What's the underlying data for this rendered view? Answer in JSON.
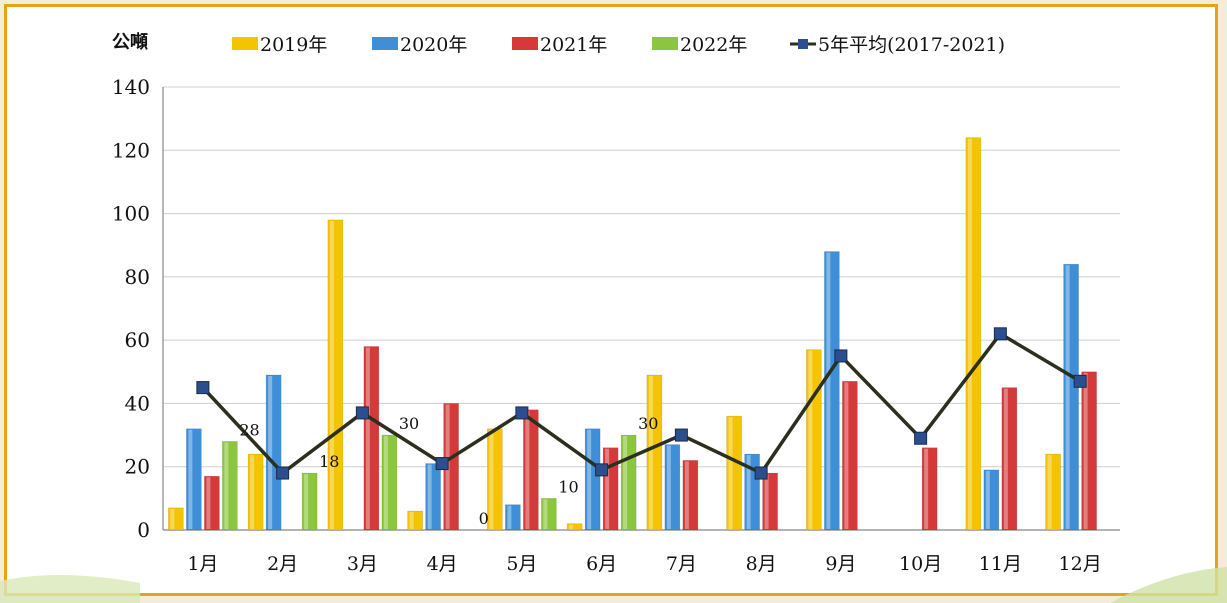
{
  "chart_data": {
    "type": "bar",
    "unit_label": "公噸",
    "categories": [
      "1月",
      "2月",
      "3月",
      "4月",
      "5月",
      "6月",
      "7月",
      "8月",
      "9月",
      "10月",
      "11月",
      "12月"
    ],
    "ylim": [
      0,
      140
    ],
    "yticks": [
      0,
      20,
      40,
      60,
      80,
      100,
      120,
      140
    ],
    "grid": true,
    "legend_placement": "top",
    "series": [
      {
        "name": "2019年",
        "color": "#f5c400",
        "values": [
          7,
          24,
          98,
          6,
          32,
          2,
          49,
          36,
          57,
          0,
          124,
          24
        ]
      },
      {
        "name": "2020年",
        "color": "#3f8fd8",
        "values": [
          32,
          49,
          0,
          21,
          8,
          32,
          27,
          24,
          88,
          0,
          19,
          84
        ]
      },
      {
        "name": "2021年",
        "color": "#d43a3a",
        "values": [
          17,
          0,
          58,
          40,
          38,
          26,
          22,
          18,
          47,
          26,
          45,
          50
        ]
      },
      {
        "name": "2022年",
        "color": "#8cc63e",
        "values": [
          28,
          18,
          30,
          0,
          10,
          30,
          null,
          null,
          null,
          null,
          null,
          null
        ]
      }
    ],
    "line": {
      "name": "5年平均(2017-2021)",
      "color": "#2a2f1e",
      "marker_color": "#2b4f8e",
      "values": [
        45,
        18,
        37,
        21,
        37,
        19,
        30,
        18,
        55,
        29,
        62,
        47
      ]
    },
    "data_labels_series": "2022年",
    "data_labels": [
      "28",
      "18",
      "30",
      "0",
      "10",
      "30"
    ]
  }
}
